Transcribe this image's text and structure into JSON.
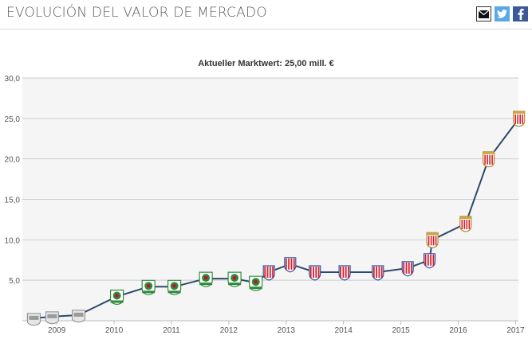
{
  "header": {
    "title": "EVOLUCIÓN DEL VALOR DE MERCADO",
    "share_icons": [
      "mail-icon",
      "twitter-icon",
      "facebook-icon"
    ]
  },
  "colors": {
    "line": "#2e4a6b",
    "plot_bg": "#f5f5f5",
    "grid": "#cccccc",
    "club_stoke": "#d2202f",
    "club_blackburn": "#2e8b3a",
    "club_sevilla": "#d4202a",
    "club_early": "#8a8a8a"
  },
  "chart_data": {
    "type": "line",
    "title": "Aktueller Marktwert: 25,00 mill. €",
    "xlabel": "",
    "ylabel": "",
    "xlim": [
      2008.4,
      2017.05
    ],
    "ylim": [
      0,
      30
    ],
    "grid": true,
    "x_ticks": [
      "2009",
      "2010",
      "2011",
      "2012",
      "2013",
      "2014",
      "2015",
      "2016",
      "2017"
    ],
    "y_ticks": [
      "30,0",
      "25,0",
      "20,0",
      "15,0",
      "10,0",
      "5,0"
    ],
    "series": [
      {
        "name": "Marktwert",
        "x": [
          2008.6,
          2008.92,
          2009.38,
          2010.05,
          2010.6,
          2011.05,
          2011.6,
          2012.1,
          2012.47,
          2012.7,
          2013.07,
          2013.5,
          2014.02,
          2014.6,
          2015.12,
          2015.5,
          2015.55,
          2016.13,
          2016.53,
          2017.06
        ],
        "values": [
          0.3,
          0.5,
          0.7,
          3.0,
          4.2,
          4.2,
          5.2,
          5.2,
          4.7,
          6.0,
          7.0,
          6.0,
          6.0,
          6.0,
          6.5,
          7.5,
          10.0,
          12.0,
          20.0,
          25.0
        ],
        "clubs": [
          "early",
          "early",
          "early",
          "blackburn",
          "blackburn",
          "blackburn",
          "blackburn",
          "blackburn",
          "blackburn",
          "stoke",
          "stoke",
          "stoke",
          "stoke",
          "stoke",
          "stoke",
          "stoke",
          "sevilla",
          "sevilla",
          "sevilla",
          "sevilla"
        ]
      }
    ]
  }
}
